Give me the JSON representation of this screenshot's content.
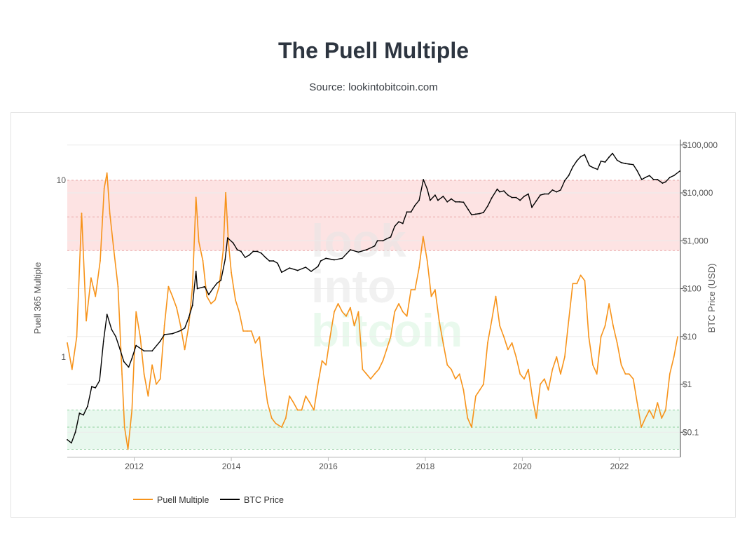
{
  "header": {
    "title": "The Puell Multiple",
    "subtitle": "Source: lookintobitcoin.com"
  },
  "watermark": [
    "look",
    "into",
    "bitcoin"
  ],
  "colors": {
    "puell": "#f7931a",
    "price": "#000000",
    "red_band": "#fde3e3",
    "green_band": "#e8f8ee",
    "red_dash": "#e8a8a8",
    "green_dash": "#8fcf9f",
    "axis_text": "#555555"
  },
  "chart_data": {
    "type": "line",
    "title": "The Puell Multiple",
    "x_tick_labels": [
      "2012",
      "2014",
      "2016",
      "2018",
      "2020",
      "2022"
    ],
    "x_range": [
      "2010-08-15",
      "2023-03-31"
    ],
    "y_left": {
      "label": "Puell 365 Multiple",
      "scale": "log",
      "range": [
        0.27,
        17
      ],
      "tick_labels": [
        {
          "value": 10,
          "label": "10"
        },
        {
          "value": 1,
          "label": "1"
        }
      ]
    },
    "y_right": {
      "label": "BTC Price (USD)",
      "scale": "log",
      "range": [
        0.03,
        130000
      ],
      "tick_labels": [
        {
          "value": 100000,
          "label": "$100,000"
        },
        {
          "value": 10000,
          "label": "$10,000"
        },
        {
          "value": 1000,
          "label": "$1,000"
        },
        {
          "value": 100,
          "label": "$100"
        },
        {
          "value": 10,
          "label": "$10"
        },
        {
          "value": 1,
          "label": "$1"
        },
        {
          "value": 0.1,
          "label": "$0.1"
        }
      ]
    },
    "bands": [
      {
        "zone": "red",
        "from": 4,
        "to": 10,
        "mid": 6.2
      },
      {
        "zone": "green",
        "from": 0.3,
        "to": 0.5,
        "mid": 0.4
      }
    ],
    "legend": {
      "position": "bottom-left"
    },
    "series": [
      {
        "name": "Puell Multiple",
        "axis": "left",
        "dates": [
          "2010-08-15",
          "2010-09-20",
          "2010-10-25",
          "2010-12-01",
          "2011-01-05",
          "2011-02-10",
          "2011-03-15",
          "2011-04-20",
          "2011-05-20",
          "2011-06-10",
          "2011-07-01",
          "2011-08-01",
          "2011-09-01",
          "2011-10-01",
          "2011-10-20",
          "2011-11-15",
          "2011-12-15",
          "2012-01-15",
          "2012-02-15",
          "2012-03-15",
          "2012-04-15",
          "2012-05-15",
          "2012-06-15",
          "2012-07-15",
          "2012-08-15",
          "2012-09-15",
          "2012-10-15",
          "2012-11-15",
          "2012-12-15",
          "2013-01-15",
          "2013-02-15",
          "2013-03-15",
          "2013-04-10",
          "2013-05-01",
          "2013-06-01",
          "2013-07-01",
          "2013-08-01",
          "2013-09-01",
          "2013-10-01",
          "2013-11-01",
          "2013-11-20",
          "2013-12-10",
          "2014-01-01",
          "2014-02-01",
          "2014-03-01",
          "2014-04-01",
          "2014-05-01",
          "2014-06-01",
          "2014-07-01",
          "2014-08-01",
          "2014-09-01",
          "2014-10-01",
          "2014-11-01",
          "2014-12-01",
          "2015-01-15",
          "2015-02-15",
          "2015-03-15",
          "2015-04-15",
          "2015-05-15",
          "2015-06-15",
          "2015-07-15",
          "2015-08-15",
          "2015-09-15",
          "2015-10-15",
          "2015-11-15",
          "2015-12-15",
          "2016-01-15",
          "2016-02-15",
          "2016-03-15",
          "2016-04-15",
          "2016-05-15",
          "2016-06-15",
          "2016-07-15",
          "2016-08-15",
          "2016-09-15",
          "2016-10-15",
          "2016-11-15",
          "2016-12-15",
          "2017-01-15",
          "2017-02-15",
          "2017-03-15",
          "2017-04-15",
          "2017-05-15",
          "2017-06-15",
          "2017-07-15",
          "2017-08-15",
          "2017-09-15",
          "2017-10-15",
          "2017-11-15",
          "2017-12-15",
          "2018-01-15",
          "2018-02-15",
          "2018-03-15",
          "2018-04-15",
          "2018-05-15",
          "2018-06-15",
          "2018-07-15",
          "2018-08-15",
          "2018-09-15",
          "2018-10-15",
          "2018-11-15",
          "2018-12-15",
          "2019-01-15",
          "2019-02-15",
          "2019-03-15",
          "2019-04-15",
          "2019-05-15",
          "2019-06-15",
          "2019-07-15",
          "2019-08-15",
          "2019-09-15",
          "2019-10-15",
          "2019-11-15",
          "2019-12-15",
          "2020-01-15",
          "2020-02-15",
          "2020-03-15",
          "2020-04-15",
          "2020-05-15",
          "2020-06-15",
          "2020-07-15",
          "2020-08-15",
          "2020-09-15",
          "2020-10-15",
          "2020-11-15",
          "2020-12-15",
          "2021-01-15",
          "2021-02-15",
          "2021-03-15",
          "2021-04-15",
          "2021-05-15",
          "2021-06-15",
          "2021-07-15",
          "2021-08-15",
          "2021-09-15",
          "2021-10-15",
          "2021-11-15",
          "2021-12-15",
          "2022-01-15",
          "2022-02-15",
          "2022-03-15",
          "2022-04-15",
          "2022-05-15",
          "2022-06-15",
          "2022-07-15",
          "2022-08-15",
          "2022-09-15",
          "2022-10-15",
          "2022-11-15",
          "2022-12-15",
          "2023-01-15",
          "2023-02-15",
          "2023-03-15"
        ],
        "values": [
          1.2,
          0.85,
          1.3,
          6.5,
          1.6,
          2.8,
          2.2,
          3.5,
          9,
          11,
          6.5,
          4,
          2.5,
          0.8,
          0.4,
          0.3,
          0.5,
          1.8,
          1.3,
          0.8,
          0.6,
          0.9,
          0.7,
          0.75,
          1.5,
          2.5,
          2.2,
          1.9,
          1.5,
          1.1,
          1.5,
          2.5,
          8,
          4.5,
          3.5,
          2.2,
          2,
          2.1,
          2.5,
          4,
          8.5,
          4.5,
          3,
          2.1,
          1.8,
          1.4,
          1.4,
          1.4,
          1.2,
          1.3,
          0.8,
          0.55,
          0.45,
          0.42,
          0.4,
          0.45,
          0.6,
          0.55,
          0.5,
          0.5,
          0.6,
          0.55,
          0.5,
          0.7,
          0.95,
          0.9,
          1.3,
          1.8,
          2,
          1.8,
          1.7,
          1.9,
          1.5,
          1.8,
          0.85,
          0.8,
          0.75,
          0.8,
          0.85,
          0.95,
          1.1,
          1.3,
          1.8,
          2,
          1.8,
          1.7,
          2.4,
          2.4,
          3.2,
          4.8,
          3.5,
          2.2,
          2.4,
          1.6,
          1.2,
          0.9,
          0.85,
          0.75,
          0.8,
          0.65,
          0.45,
          0.4,
          0.6,
          0.65,
          0.7,
          1.2,
          1.6,
          2.2,
          1.5,
          1.3,
          1.1,
          1.2,
          1,
          0.8,
          0.75,
          0.85,
          0.6,
          0.45,
          0.7,
          0.75,
          0.65,
          0.85,
          1,
          0.8,
          1,
          1.6,
          2.6,
          2.6,
          2.9,
          2.7,
          1.3,
          0.9,
          0.8,
          1.3,
          1.5,
          2,
          1.5,
          1.2,
          0.9,
          0.8,
          0.8,
          0.75,
          0.55,
          0.4,
          0.45,
          0.5,
          0.45,
          0.55,
          0.45,
          0.5,
          0.8,
          1,
          1.3
        ]
      },
      {
        "name": "BTC Price",
        "axis": "right",
        "dates": [
          "2010-08-15",
          "2010-09-15",
          "2010-10-15",
          "2010-11-15",
          "2010-12-15",
          "2011-01-15",
          "2011-02-15",
          "2011-03-15",
          "2011-04-15",
          "2011-05-15",
          "2011-06-10",
          "2011-07-15",
          "2011-08-15",
          "2011-09-15",
          "2011-10-15",
          "2011-11-20",
          "2011-12-15",
          "2012-01-15",
          "2012-03-15",
          "2012-05-15",
          "2012-07-15",
          "2012-08-15",
          "2012-10-15",
          "2012-12-15",
          "2013-01-15",
          "2013-02-15",
          "2013-03-15",
          "2013-04-10",
          "2013-04-20",
          "2013-06-15",
          "2013-07-15",
          "2013-08-15",
          "2013-09-15",
          "2013-10-15",
          "2013-11-15",
          "2013-12-04",
          "2014-01-15",
          "2014-02-15",
          "2014-03-15",
          "2014-04-15",
          "2014-05-15",
          "2014-06-15",
          "2014-07-15",
          "2014-08-15",
          "2014-09-15",
          "2014-10-15",
          "2014-11-15",
          "2014-12-15",
          "2015-01-15",
          "2015-03-15",
          "2015-05-15",
          "2015-07-15",
          "2015-08-25",
          "2015-10-15",
          "2015-11-05",
          "2015-12-15",
          "2016-02-15",
          "2016-04-15",
          "2016-06-15",
          "2016-08-15",
          "2016-10-15",
          "2016-12-15",
          "2017-01-05",
          "2017-02-15",
          "2017-03-15",
          "2017-04-15",
          "2017-05-15",
          "2017-06-15",
          "2017-07-15",
          "2017-08-15",
          "2017-09-15",
          "2017-10-15",
          "2017-11-15",
          "2017-12-17",
          "2018-01-15",
          "2018-02-06",
          "2018-03-15",
          "2018-04-06",
          "2018-05-15",
          "2018-06-15",
          "2018-07-15",
          "2018-08-15",
          "2018-09-15",
          "2018-10-15",
          "2018-11-20",
          "2018-12-15",
          "2019-01-15",
          "2019-02-15",
          "2019-03-15",
          "2019-04-15",
          "2019-05-15",
          "2019-06-26",
          "2019-07-15",
          "2019-08-15",
          "2019-09-15",
          "2019-10-15",
          "2019-11-15",
          "2019-12-15",
          "2020-01-15",
          "2020-02-15",
          "2020-03-13",
          "2020-04-15",
          "2020-05-15",
          "2020-06-15",
          "2020-07-15",
          "2020-08-15",
          "2020-09-15",
          "2020-10-15",
          "2020-11-15",
          "2020-12-15",
          "2021-01-15",
          "2021-02-15",
          "2021-03-15",
          "2021-04-14",
          "2021-05-20",
          "2021-06-15",
          "2021-07-20",
          "2021-08-15",
          "2021-09-15",
          "2021-10-15",
          "2021-11-10",
          "2021-12-15",
          "2022-01-15",
          "2022-02-15",
          "2022-03-15",
          "2022-04-15",
          "2022-05-15",
          "2022-06-18",
          "2022-07-15",
          "2022-08-15",
          "2022-09-15",
          "2022-10-15",
          "2022-11-21",
          "2022-12-15",
          "2023-01-15",
          "2023-02-15",
          "2023-03-31"
        ],
        "values": [
          0.07,
          0.06,
          0.1,
          0.25,
          0.23,
          0.35,
          0.9,
          0.85,
          1.2,
          8,
          29,
          14,
          10,
          5.5,
          3,
          2.3,
          3.5,
          6.5,
          5,
          5,
          8,
          11,
          11.5,
          13.3,
          15,
          25,
          45,
          230,
          100,
          110,
          75,
          100,
          130,
          150,
          400,
          1150,
          900,
          650,
          600,
          450,
          500,
          600,
          600,
          550,
          450,
          380,
          380,
          340,
          220,
          270,
          240,
          280,
          230,
          290,
          380,
          430,
          400,
          430,
          650,
          580,
          650,
          780,
          1000,
          1000,
          1100,
          1200,
          2000,
          2500,
          2300,
          4000,
          4000,
          5500,
          7000,
          19000,
          12000,
          7000,
          9000,
          7000,
          8500,
          6500,
          7500,
          6500,
          6500,
          6400,
          4500,
          3500,
          3600,
          3700,
          3900,
          5300,
          7800,
          12000,
          10500,
          11000,
          9000,
          8000,
          8000,
          7000,
          8500,
          9500,
          5000,
          6800,
          9000,
          9500,
          9500,
          11500,
          10500,
          11500,
          18000,
          23000,
          35000,
          47000,
          57000,
          63000,
          37000,
          34000,
          31000,
          46000,
          44000,
          56000,
          67000,
          48000,
          43000,
          41000,
          40000,
          39000,
          29000,
          19000,
          21000,
          23000,
          19000,
          19000,
          16000,
          17000,
          21000,
          23000,
          28500
        ]
      }
    ]
  },
  "legend_labels": [
    "Puell Multiple",
    "BTC Price"
  ]
}
